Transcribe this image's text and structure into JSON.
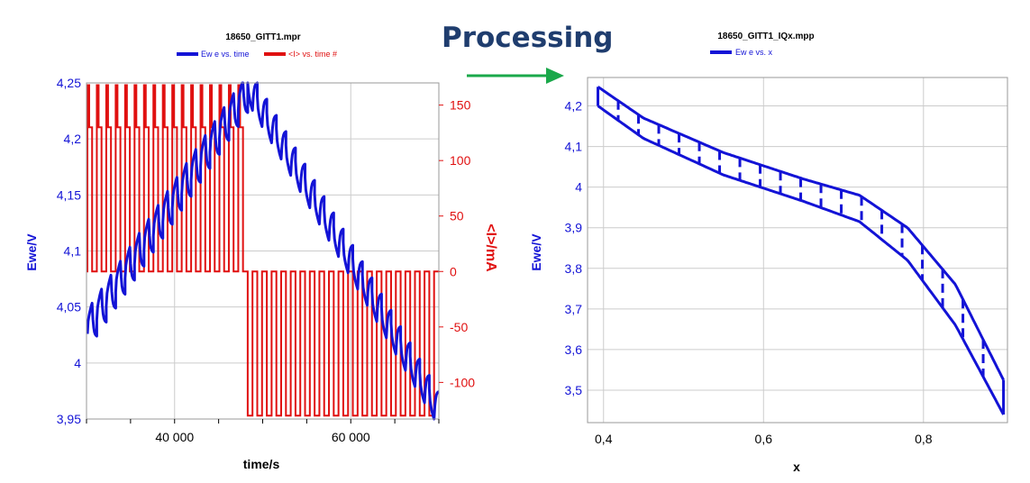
{
  "heading": "Processing",
  "colors": {
    "blue": "#1313d6",
    "red": "#e01010",
    "arrow": "#1aa84a",
    "grid": "#cccccc",
    "heading": "#1f3d6e"
  },
  "chart_data": [
    {
      "type": "line",
      "title": "18650_GITT1.mpr",
      "legend": [
        "Ew e vs. time",
        "<I> vs. time #"
      ],
      "xlabel": "time/s",
      "ylabel": "Ewe/V",
      "y2label": "<I>/mA",
      "xlim": [
        30000,
        70000
      ],
      "ylim": [
        3.95,
        4.25
      ],
      "y2lim": [
        -133,
        170
      ],
      "xticks": [
        "40 000",
        "60 000"
      ],
      "yticks": [
        "4,25",
        "4,2",
        "4,15",
        "4,1",
        "4,05",
        "4",
        "3,95"
      ],
      "y2ticks": [
        "150",
        "100",
        "50",
        "0",
        "-50",
        "-100"
      ],
      "charge": {
        "t_start": 30100,
        "t_end": 48300,
        "pulses": 17,
        "current_mA": 130,
        "spike_mA": 168,
        "v_start": 4.035,
        "v_end": 4.247,
        "relax_drop_V": 0.03
      },
      "discharge": {
        "t_start": 48300,
        "t_end": 70000,
        "pulses": 20,
        "current_mA": -130,
        "v_start": 4.245,
        "v_end": 3.955,
        "relax_rise_V": 0.025
      }
    },
    {
      "type": "line",
      "title": "18650_GITT1_IQx.mpp",
      "legend": [
        "Ew e vs. x"
      ],
      "xlabel": "x",
      "ylabel": "Ewe/V",
      "xlim": [
        0.38,
        0.905
      ],
      "ylim": [
        3.42,
        4.27
      ],
      "xticks": [
        "0,4",
        "0,6",
        "0,8"
      ],
      "yticks": [
        "4,2",
        "4,1",
        "4",
        "3,9",
        "3,8",
        "3,7",
        "3,6",
        "3,5"
      ],
      "x_range": [
        0.393,
        0.9
      ],
      "upper_curve": [
        [
          0.393,
          4.247
        ],
        [
          0.45,
          4.17
        ],
        [
          0.55,
          4.085
        ],
        [
          0.65,
          4.02
        ],
        [
          0.72,
          3.98
        ],
        [
          0.78,
          3.9
        ],
        [
          0.84,
          3.76
        ],
        [
          0.9,
          3.525
        ]
      ],
      "lower_curve": [
        [
          0.393,
          4.2
        ],
        [
          0.45,
          4.12
        ],
        [
          0.55,
          4.03
        ],
        [
          0.65,
          3.965
        ],
        [
          0.72,
          3.915
        ],
        [
          0.78,
          3.82
        ],
        [
          0.84,
          3.66
        ],
        [
          0.9,
          3.44
        ]
      ],
      "pulses": 20
    }
  ]
}
